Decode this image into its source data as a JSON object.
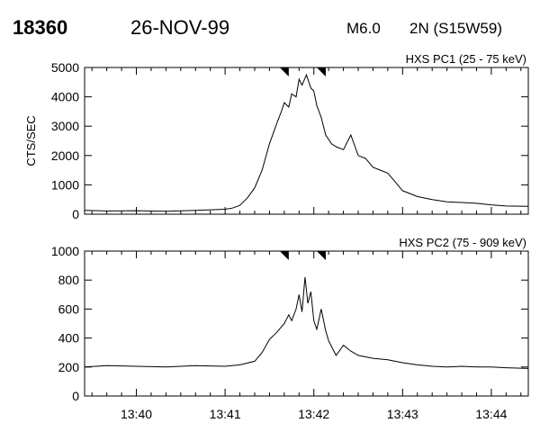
{
  "header": {
    "event_id": "18360",
    "date": "26-NOV-99",
    "goes_class": "M6.0",
    "location": "2N (S15W59)"
  },
  "chart_data": [
    {
      "type": "line",
      "title": "HXS PC1 (25 - 75 keV)",
      "ylabel": "CTS/SEC",
      "xlabel": "",
      "xlim": [
        "13:39:25",
        "13:44:25"
      ],
      "ylim": [
        0,
        5000
      ],
      "xticks": [
        "13:40",
        "13:41",
        "13:42",
        "13:43",
        "13:44"
      ],
      "yticks": [
        0,
        1000,
        2000,
        3000,
        4000,
        5000
      ],
      "markers": [
        "13:41:40",
        "13:42:05"
      ],
      "grid": false,
      "series": [
        {
          "x": [
            "13:39:25",
            "13:39:40",
            "13:40:00",
            "13:40:20",
            "13:40:40",
            "13:41:00",
            "13:41:05",
            "13:41:10",
            "13:41:15",
            "13:41:20",
            "13:41:25",
            "13:41:30",
            "13:41:35",
            "13:41:38",
            "13:41:40",
            "13:41:43",
            "13:41:45",
            "13:41:48",
            "13:41:50",
            "13:41:52",
            "13:41:55",
            "13:41:58",
            "13:42:00",
            "13:42:02",
            "13:42:05",
            "13:42:08",
            "13:42:12",
            "13:42:15",
            "13:42:20",
            "13:42:25",
            "13:42:30",
            "13:42:35",
            "13:42:40",
            "13:42:45",
            "13:42:50",
            "13:42:55",
            "13:43:00",
            "13:43:10",
            "13:43:20",
            "13:43:30",
            "13:43:40",
            "13:43:50",
            "13:44:00",
            "13:44:10",
            "13:44:25"
          ],
          "y": [
            130,
            110,
            120,
            100,
            130,
            170,
            210,
            300,
            550,
            900,
            1500,
            2400,
            3100,
            3500,
            3800,
            3650,
            4100,
            4000,
            4600,
            4400,
            4750,
            4300,
            4200,
            3700,
            3300,
            2700,
            2400,
            2300,
            2200,
            2700,
            2000,
            1900,
            1600,
            1500,
            1400,
            1100,
            800,
            600,
            500,
            420,
            400,
            370,
            320,
            280,
            270
          ]
        }
      ]
    },
    {
      "type": "line",
      "title": "HXS PC2 (75 - 909 keV)",
      "ylabel": "",
      "xlabel": "",
      "xlim": [
        "13:39:25",
        "13:44:25"
      ],
      "ylim": [
        0,
        1000
      ],
      "xticks": [
        "13:40",
        "13:41",
        "13:42",
        "13:43",
        "13:44"
      ],
      "yticks": [
        0,
        200,
        400,
        600,
        800,
        1000
      ],
      "markers": [
        "13:41:40",
        "13:42:05"
      ],
      "grid": false,
      "series": [
        {
          "x": [
            "13:39:25",
            "13:39:40",
            "13:40:00",
            "13:40:20",
            "13:40:40",
            "13:41:00",
            "13:41:10",
            "13:41:20",
            "13:41:25",
            "13:41:30",
            "13:41:35",
            "13:41:40",
            "13:41:43",
            "13:41:45",
            "13:41:48",
            "13:41:50",
            "13:41:52",
            "13:41:54",
            "13:41:56",
            "13:41:58",
            "13:42:00",
            "13:42:02",
            "13:42:05",
            "13:42:08",
            "13:42:10",
            "13:42:15",
            "13:42:20",
            "13:42:25",
            "13:42:30",
            "13:42:40",
            "13:42:50",
            "13:43:00",
            "13:43:10",
            "13:43:20",
            "13:43:30",
            "13:43:40",
            "13:43:50",
            "13:44:00",
            "13:44:10",
            "13:44:25"
          ],
          "y": [
            200,
            210,
            205,
            200,
            210,
            205,
            215,
            240,
            300,
            390,
            440,
            500,
            560,
            520,
            600,
            700,
            580,
            820,
            640,
            720,
            520,
            460,
            600,
            450,
            380,
            280,
            350,
            310,
            280,
            260,
            250,
            230,
            215,
            205,
            200,
            205,
            200,
            200,
            195,
            190
          ]
        }
      ]
    }
  ]
}
